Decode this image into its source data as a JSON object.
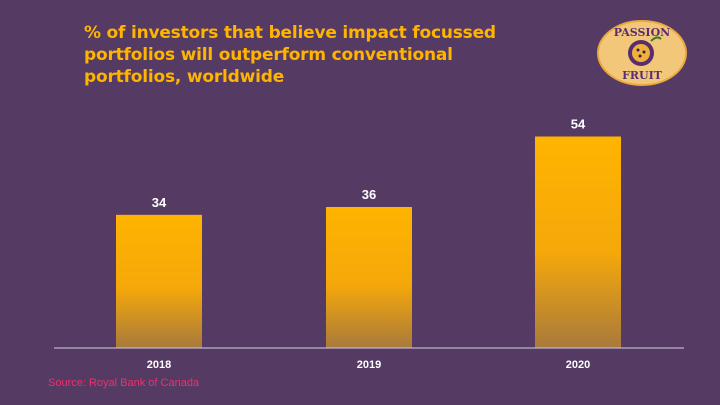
{
  "logo": {
    "line1": "PASSION",
    "line2": "FRUIT",
    "icon": "passion-fruit-icon"
  },
  "source": {
    "label": "Source:",
    "value": "Royal Bank of Canada"
  },
  "colors": {
    "background": "#553a63",
    "title": "#ffb400",
    "bar_top": "#ffb400",
    "bar_bottom": "#a87a3c",
    "axis": "#d8d0dd",
    "source": "#e8336d"
  },
  "chart_data": {
    "type": "bar",
    "title": "% of investors that  believe impact focussed portfolios will outperform conventional portfolios, worldwide",
    "categories": [
      "2018",
      "2019",
      "2020"
    ],
    "values": [
      34,
      36,
      54
    ],
    "xlabel": "",
    "ylabel": "",
    "ylim": [
      0,
      60
    ],
    "grid": false,
    "legend": "none"
  }
}
